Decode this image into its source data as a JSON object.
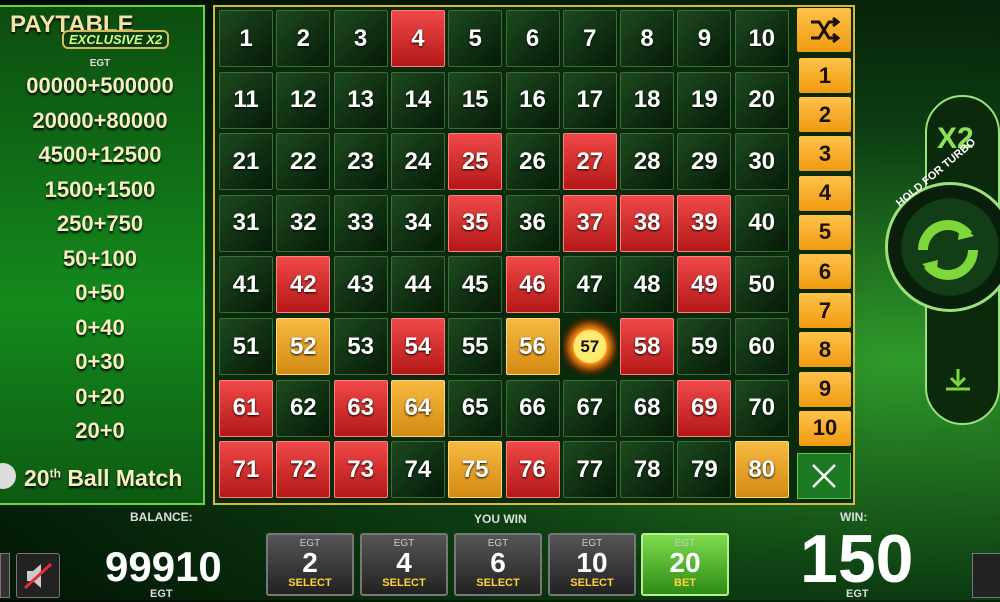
{
  "paytable": {
    "title": "PAYTABLE",
    "subtitle": "EXCLUSIVE X2",
    "currency": "EGT",
    "rows": [
      "00000+500000",
      "20000+80000",
      "4500+12500",
      "1500+1500",
      "250+750",
      "50+100",
      "0+50",
      "0+40",
      "0+30",
      "0+20",
      "20+0"
    ],
    "bonus": {
      "number": "20",
      "suffix": "th",
      "text": "Ball Match"
    }
  },
  "board": {
    "cells": [
      {
        "n": 1,
        "s": "dark"
      },
      {
        "n": 2,
        "s": "dark"
      },
      {
        "n": 3,
        "s": "dark"
      },
      {
        "n": 4,
        "s": "red"
      },
      {
        "n": 5,
        "s": "dark"
      },
      {
        "n": 6,
        "s": "dark"
      },
      {
        "n": 7,
        "s": "dark"
      },
      {
        "n": 8,
        "s": "dark"
      },
      {
        "n": 9,
        "s": "dark"
      },
      {
        "n": 10,
        "s": "dark"
      },
      {
        "n": 11,
        "s": "dark"
      },
      {
        "n": 12,
        "s": "dark"
      },
      {
        "n": 13,
        "s": "dark"
      },
      {
        "n": 14,
        "s": "dark"
      },
      {
        "n": 15,
        "s": "dark"
      },
      {
        "n": 16,
        "s": "dark"
      },
      {
        "n": 17,
        "s": "dark"
      },
      {
        "n": 18,
        "s": "dark"
      },
      {
        "n": 19,
        "s": "dark"
      },
      {
        "n": 20,
        "s": "dark"
      },
      {
        "n": 21,
        "s": "dark"
      },
      {
        "n": 22,
        "s": "dark"
      },
      {
        "n": 23,
        "s": "dark"
      },
      {
        "n": 24,
        "s": "dark"
      },
      {
        "n": 25,
        "s": "red"
      },
      {
        "n": 26,
        "s": "dark"
      },
      {
        "n": 27,
        "s": "red"
      },
      {
        "n": 28,
        "s": "dark"
      },
      {
        "n": 29,
        "s": "dark"
      },
      {
        "n": 30,
        "s": "dark"
      },
      {
        "n": 31,
        "s": "dark"
      },
      {
        "n": 32,
        "s": "dark"
      },
      {
        "n": 33,
        "s": "dark"
      },
      {
        "n": 34,
        "s": "dark"
      },
      {
        "n": 35,
        "s": "red"
      },
      {
        "n": 36,
        "s": "dark"
      },
      {
        "n": 37,
        "s": "red"
      },
      {
        "n": 38,
        "s": "red"
      },
      {
        "n": 39,
        "s": "red"
      },
      {
        "n": 40,
        "s": "dark"
      },
      {
        "n": 41,
        "s": "dark"
      },
      {
        "n": 42,
        "s": "red"
      },
      {
        "n": 43,
        "s": "dark"
      },
      {
        "n": 44,
        "s": "dark"
      },
      {
        "n": 45,
        "s": "dark"
      },
      {
        "n": 46,
        "s": "red"
      },
      {
        "n": 47,
        "s": "dark"
      },
      {
        "n": 48,
        "s": "dark"
      },
      {
        "n": 49,
        "s": "red"
      },
      {
        "n": 50,
        "s": "dark"
      },
      {
        "n": 51,
        "s": "dark"
      },
      {
        "n": 52,
        "s": "gold"
      },
      {
        "n": 53,
        "s": "dark"
      },
      {
        "n": 54,
        "s": "red"
      },
      {
        "n": 55,
        "s": "dark"
      },
      {
        "n": 56,
        "s": "gold"
      },
      {
        "n": 57,
        "s": "ball"
      },
      {
        "n": 58,
        "s": "red"
      },
      {
        "n": 59,
        "s": "dark"
      },
      {
        "n": 60,
        "s": "dark"
      },
      {
        "n": 61,
        "s": "red"
      },
      {
        "n": 62,
        "s": "dark"
      },
      {
        "n": 63,
        "s": "red"
      },
      {
        "n": 64,
        "s": "gold"
      },
      {
        "n": 65,
        "s": "dark"
      },
      {
        "n": 66,
        "s": "dark"
      },
      {
        "n": 67,
        "s": "dark"
      },
      {
        "n": 68,
        "s": "dark"
      },
      {
        "n": 69,
        "s": "red"
      },
      {
        "n": 70,
        "s": "dark"
      },
      {
        "n": 71,
        "s": "red"
      },
      {
        "n": 72,
        "s": "red"
      },
      {
        "n": 73,
        "s": "red"
      },
      {
        "n": 74,
        "s": "dark"
      },
      {
        "n": 75,
        "s": "gold"
      },
      {
        "n": 76,
        "s": "red"
      },
      {
        "n": 77,
        "s": "dark"
      },
      {
        "n": 78,
        "s": "dark"
      },
      {
        "n": 79,
        "s": "dark"
      },
      {
        "n": 80,
        "s": "gold"
      }
    ],
    "quick_picks": [
      1,
      2,
      3,
      4,
      5,
      6,
      7,
      8,
      9,
      10
    ]
  },
  "side": {
    "multiplier": "X2",
    "turbo": "HOLD FOR TURBO"
  },
  "footer": {
    "balance_label": "BALANCE:",
    "balance": "99910",
    "balance_currency": "EGT",
    "you_win": "YOU WIN",
    "bets": [
      {
        "currency": "EGT",
        "amount": "2",
        "action": "SELECT",
        "active": false
      },
      {
        "currency": "EGT",
        "amount": "4",
        "action": "SELECT",
        "active": false
      },
      {
        "currency": "EGT",
        "amount": "6",
        "action": "SELECT",
        "active": false
      },
      {
        "currency": "EGT",
        "amount": "10",
        "action": "SELECT",
        "active": false
      },
      {
        "currency": "EGT",
        "amount": "20",
        "action": "BET",
        "active": true
      }
    ],
    "win_label": "WIN:",
    "win": "150",
    "win_currency": "EGT"
  }
}
